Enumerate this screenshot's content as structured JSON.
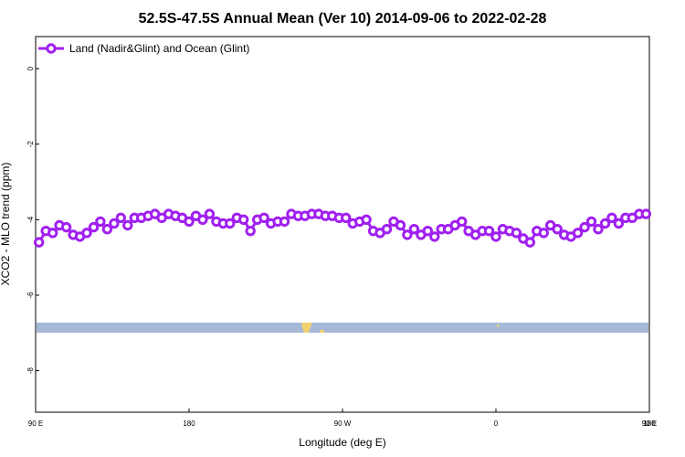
{
  "chart_data": {
    "type": "line",
    "title": "52.5S-47.5S Annual Mean (Ver 10)   2014-09-06 to 2022-02-28",
    "xlabel": "Longitude (deg E)",
    "ylabel": "XCO2 - MLO trend (ppm)",
    "xlim": [
      90,
      450
    ],
    "ylim": [
      -9.1,
      0.85
    ],
    "x_ticks": [
      {
        "value": 90,
        "label": "90 E"
      },
      {
        "value": 180,
        "label": "180"
      },
      {
        "value": 270,
        "label": "90 W"
      },
      {
        "value": 360,
        "label": "0"
      },
      {
        "value": 450,
        "label": "90 E"
      }
    ],
    "x_ticks_top_right": {
      "value": 540,
      "label": "180"
    },
    "y_ticks": [
      {
        "value": 0,
        "label": "0"
      },
      {
        "value": -2,
        "label": "-2"
      },
      {
        "value": -4,
        "label": "-4"
      },
      {
        "value": -6,
        "label": "-6"
      },
      {
        "value": -8,
        "label": "-8"
      }
    ],
    "legend": {
      "position": "top-left",
      "label": "Land (Nadir&Glint) and Ocean (Glint)"
    },
    "colors": {
      "series": "#a020f0",
      "ocean_band": "#a4b8d8",
      "land": "#f0d070"
    },
    "series": [
      {
        "name": "Land (Nadir&Glint) and Ocean (Glint)",
        "x": [
          92.5,
          97.5,
          102.5,
          107.5,
          112.5,
          117.5,
          122.5,
          127.5,
          132.5,
          137.5,
          142.5,
          147.5,
          152.5,
          157.5,
          162.5,
          167.5,
          172.5,
          177.5,
          182.5,
          187.5,
          192.5,
          197.5,
          202.5,
          207.5,
          212.5,
          217.5,
          222.5,
          227.5,
          232.5,
          237.5,
          242.5,
          247.5,
          252.5,
          257.5,
          262.5,
          267.5,
          272.5,
          277.5,
          282.5,
          287.5,
          292.5,
          297.5,
          302.5,
          307.5,
          312.5,
          317.5,
          322.5,
          327.5,
          332.5,
          337.5,
          342.5,
          347.5,
          352.5,
          357.5,
          362.5,
          367.5,
          372.5,
          377.5,
          382.5,
          387.5,
          392.5,
          397.5,
          402.5,
          407.5,
          412.5,
          417.5,
          422.5,
          427.5,
          432.5,
          437.5,
          442.5,
          447.5,
          452.5,
          457.5,
          462.5,
          467.5,
          472.5,
          477.5,
          482.5,
          487.5,
          492.5,
          497.5,
          502.5,
          507.5,
          512.5,
          517.5,
          522.5,
          527.5,
          532.5,
          537.5
        ],
        "y": [
          -4.6,
          -4.3,
          -4.35,
          -4.15,
          -4.2,
          -4.4,
          -4.45,
          -4.35,
          -4.2,
          -4.05,
          -4.25,
          -4.1,
          -3.95,
          -4.15,
          -3.95,
          -3.95,
          -3.9,
          -3.85,
          -3.95,
          -3.85,
          -3.9,
          -3.95,
          -4.05,
          -3.9,
          -4.0,
          -3.85,
          -4.05,
          -4.1,
          -4.1,
          -3.95,
          -4.0,
          -4.3,
          -4.0,
          -3.95,
          -4.1,
          -4.05,
          -4.05,
          -3.85,
          -3.9,
          -3.9,
          -3.85,
          -3.85,
          -3.9,
          -3.9,
          -3.95,
          -3.95,
          -4.1,
          -4.05,
          -4.0,
          -4.3,
          -4.35,
          -4.25,
          -4.05,
          -4.15,
          -4.4,
          -4.25,
          -4.4,
          -4.3,
          -4.45,
          -4.25,
          -4.25,
          -4.15,
          -4.05,
          -4.3,
          -4.4,
          -4.3,
          -4.3,
          -4.45,
          -4.25,
          -4.3,
          -4.35,
          -4.5,
          -4.6,
          -4.3,
          -4.35,
          -4.15,
          -4.25,
          -4.4,
          -4.45,
          -4.35,
          -4.2,
          -4.05,
          -4.25,
          -4.1,
          -3.95,
          -4.1,
          -3.95,
          -3.95,
          -3.85,
          -3.85
        ]
      }
    ]
  }
}
